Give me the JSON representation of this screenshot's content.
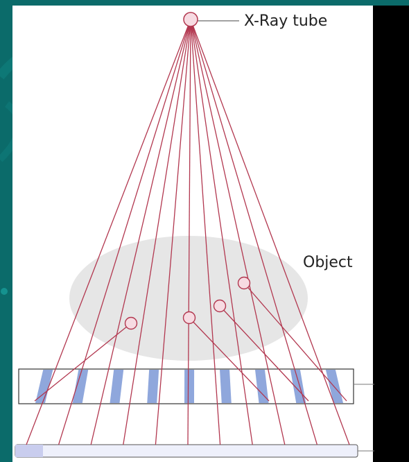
{
  "labels": {
    "tube": "X-Ray tube",
    "object": "Object"
  },
  "colors": {
    "background": "#0b6b6a",
    "ray": "#b2374f",
    "object": "#e6e6e6",
    "grid_strip": "#8fa7dc",
    "scatter_point": "#f7dbe2"
  },
  "counts": {
    "primary_rays": 11,
    "grid_strips": 9,
    "scatter_points": 4
  }
}
